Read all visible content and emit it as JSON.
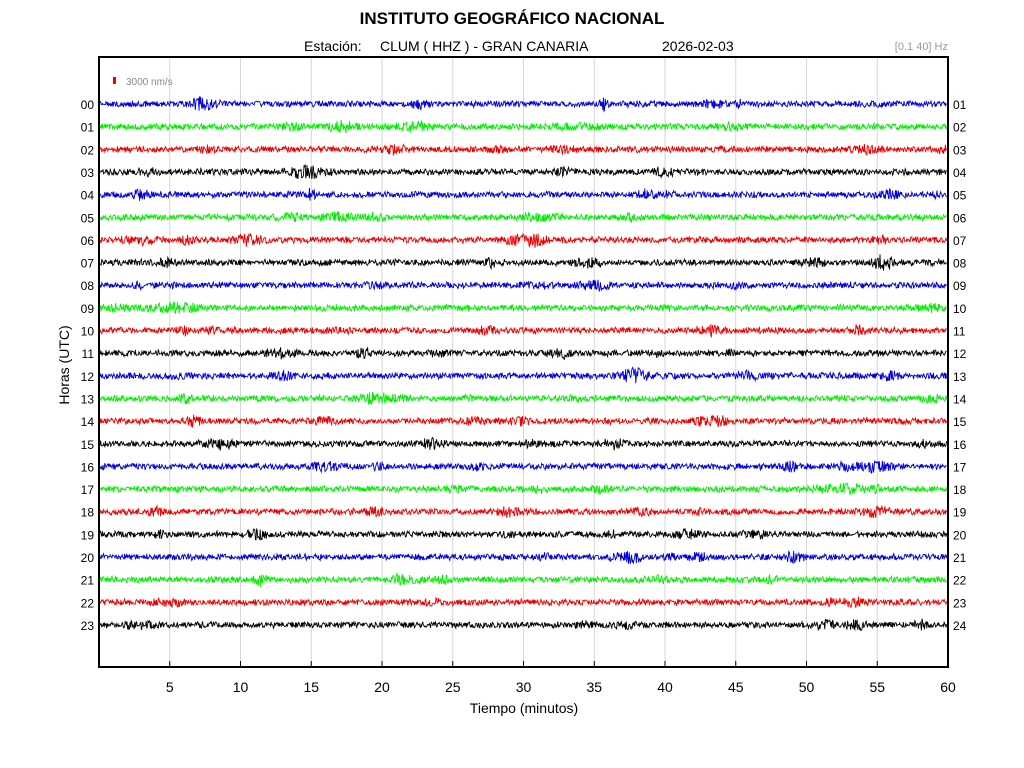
{
  "header": {
    "title": "INSTITUTO GEOGRÁFICO NACIONAL",
    "station_prefix": "Estación:",
    "station": "CLUM ( HHZ ) - GRAN CANARIA",
    "date": "2026-02-03",
    "filter": "[0.1 40] Hz"
  },
  "colors": {
    "blue": "#0000dd",
    "green": "#00ee00",
    "red": "#ee0000",
    "black": "#000000",
    "grid": "#d6d6d6",
    "axes": "#000000"
  },
  "chart_data": {
    "type": "line",
    "title": "INSTITUTO GEOGRÁFICO NACIONAL",
    "xlabel": "Tiempo (minutos)",
    "ylabel": "Horas (UTC)",
    "xlim": [
      0,
      60
    ],
    "x_ticks": [
      5,
      10,
      15,
      20,
      25,
      30,
      35,
      40,
      45,
      50,
      55,
      60
    ],
    "grid": "vertical",
    "scale_label": "3000 nm/s",
    "scale_color": "#ee0000",
    "left_labels": [
      "00",
      "01",
      "02",
      "03",
      "04",
      "05",
      "06",
      "07",
      "08",
      "09",
      "10",
      "11",
      "12",
      "13",
      "14",
      "15",
      "16",
      "17",
      "18",
      "19",
      "20",
      "21",
      "22",
      "23"
    ],
    "right_labels": [
      "01",
      "02",
      "03",
      "04",
      "05",
      "06",
      "07",
      "08",
      "09",
      "10",
      "11",
      "12",
      "13",
      "14",
      "15",
      "16",
      "17",
      "18",
      "19",
      "20",
      "21",
      "22",
      "23",
      "24"
    ],
    "trace_colors": [
      "blue",
      "green",
      "red",
      "black",
      "blue",
      "green",
      "red",
      "black",
      "blue",
      "green",
      "red",
      "black",
      "blue",
      "green",
      "red",
      "black",
      "blue",
      "green",
      "red",
      "black",
      "blue",
      "green",
      "red",
      "black"
    ],
    "traces": "24 hourly seismogram traces, each covering minutes 0-60"
  }
}
